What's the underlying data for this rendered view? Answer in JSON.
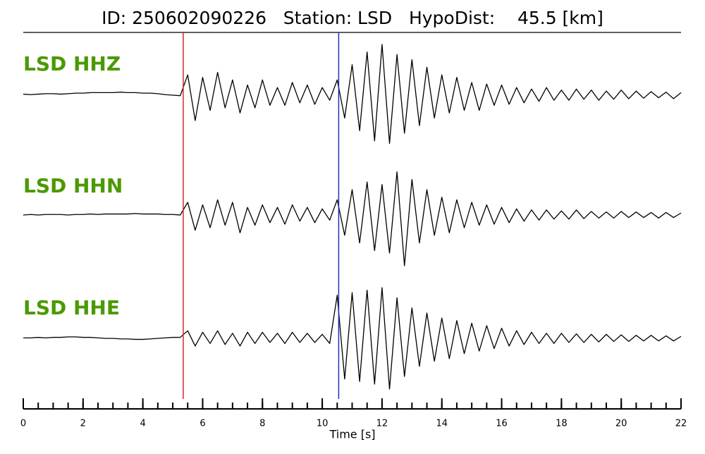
{
  "chart_data": {
    "type": "line",
    "title": "ID: 250602090226   Station: LSD   HypoDist:    45.5 [km]",
    "x_label": "Time [s]",
    "xlim": [
      0,
      22
    ],
    "xticks": [
      0,
      2,
      4,
      6,
      8,
      10,
      12,
      14,
      16,
      18,
      20,
      22
    ],
    "xminorticks": [
      0,
      0.5,
      1,
      1.5,
      2,
      2.5,
      3,
      3.5,
      4,
      4.5,
      5,
      5.5,
      6,
      6.5,
      7,
      7.5,
      8,
      8.5,
      9,
      9.5,
      10,
      10.5,
      11,
      11.5,
      12,
      12.5,
      13,
      13.5,
      14,
      14.5,
      15,
      15.5,
      16,
      16.5,
      17,
      17.5,
      18,
      18.5,
      19,
      19.5,
      20,
      20.5,
      21,
      21.5,
      22
    ],
    "label_color": "#4a9a00",
    "markers": [
      {
        "x": 5.35,
        "color": "#d62728"
      },
      {
        "x": 10.55,
        "color": "#2a2ab8"
      }
    ],
    "x": [
      0,
      0.25,
      0.5,
      0.75,
      1,
      1.25,
      1.5,
      1.75,
      2,
      2.25,
      2.5,
      2.75,
      3,
      3.25,
      3.5,
      3.75,
      4,
      4.25,
      4.5,
      4.75,
      5,
      5.25,
      5.5,
      5.75,
      6,
      6.25,
      6.5,
      6.75,
      7,
      7.25,
      7.5,
      7.75,
      8,
      8.25,
      8.5,
      8.75,
      9,
      9.25,
      9.5,
      9.75,
      10,
      10.25,
      10.5,
      10.75,
      11,
      11.25,
      11.5,
      11.75,
      12,
      12.25,
      12.5,
      12.75,
      13,
      13.25,
      13.5,
      13.75,
      14,
      14.25,
      14.5,
      14.75,
      15,
      15.25,
      15.5,
      15.75,
      16,
      16.25,
      16.5,
      16.75,
      17,
      17.25,
      17.5,
      17.75,
      18,
      18.25,
      18.5,
      18.75,
      19,
      19.25,
      19.5,
      19.75,
      20,
      20.25,
      20.5,
      20.75,
      21,
      21.25,
      21.5,
      21.75,
      22
    ],
    "series": [
      {
        "name": "LSD HHZ",
        "color": "#000000",
        "values": [
          0.02,
          0.01,
          0.02,
          0.03,
          0.03,
          0.02,
          0.03,
          0.04,
          0.04,
          0.05,
          0.05,
          0.05,
          0.05,
          0.06,
          0.05,
          0.05,
          0.04,
          0.04,
          0.03,
          0.01,
          0,
          -0.01,
          0.4,
          -0.5,
          0.35,
          -0.3,
          0.45,
          -0.25,
          0.3,
          -0.35,
          0.2,
          -0.25,
          0.3,
          -0.2,
          0.15,
          -0.2,
          0.25,
          -0.15,
          0.2,
          -0.18,
          0.15,
          -0.1,
          0.3,
          -0.45,
          0.6,
          -0.7,
          0.85,
          -0.9,
          1.0,
          -0.95,
          0.8,
          -0.75,
          0.7,
          -0.6,
          0.55,
          -0.45,
          0.4,
          -0.35,
          0.35,
          -0.3,
          0.25,
          -0.3,
          0.22,
          -0.2,
          0.2,
          -0.18,
          0.15,
          -0.15,
          0.12,
          -0.12,
          0.15,
          -0.1,
          0.1,
          -0.1,
          0.12,
          -0.08,
          0.1,
          -0.1,
          0.08,
          -0.08,
          0.1,
          -0.07,
          0.08,
          -0.06,
          0.07,
          -0.05,
          0.06,
          -0.07,
          0.05
        ]
      },
      {
        "name": "LSD HHN",
        "color": "#000000",
        "values": [
          0,
          0.01,
          0,
          0.01,
          0.01,
          0.01,
          0,
          0.01,
          0.01,
          0.02,
          0.01,
          0.02,
          0.02,
          0.02,
          0.02,
          0.03,
          0.02,
          0.02,
          0.02,
          0.01,
          0.01,
          0,
          0.25,
          -0.3,
          0.2,
          -0.25,
          0.3,
          -0.2,
          0.25,
          -0.35,
          0.15,
          -0.2,
          0.2,
          -0.15,
          0.15,
          -0.18,
          0.2,
          -0.12,
          0.15,
          -0.15,
          0.12,
          -0.1,
          0.3,
          -0.4,
          0.5,
          -0.55,
          0.65,
          -0.7,
          0.6,
          -0.75,
          0.85,
          -1.0,
          0.7,
          -0.55,
          0.5,
          -0.4,
          0.35,
          -0.35,
          0.3,
          -0.25,
          0.25,
          -0.2,
          0.2,
          -0.18,
          0.15,
          -0.15,
          0.12,
          -0.12,
          0.1,
          -0.1,
          0.1,
          -0.08,
          0.08,
          -0.08,
          0.1,
          -0.07,
          0.07,
          -0.06,
          0.06,
          -0.06,
          0.07,
          -0.05,
          0.06,
          -0.05,
          0.05,
          -0.06,
          0.05,
          -0.05,
          0.04
        ]
      },
      {
        "name": "LSD HHE",
        "color": "#000000",
        "values": [
          0.01,
          0.01,
          0.02,
          0.01,
          0.02,
          0.02,
          0.03,
          0.03,
          0.02,
          0.02,
          0.01,
          0,
          0,
          -0.01,
          -0.01,
          -0.02,
          -0.02,
          -0.01,
          0,
          0.01,
          0.02,
          0.02,
          0.15,
          -0.15,
          0.12,
          -0.1,
          0.15,
          -0.12,
          0.1,
          -0.15,
          0.12,
          -0.1,
          0.12,
          -0.08,
          0.1,
          -0.1,
          0.12,
          -0.08,
          0.1,
          -0.08,
          0.08,
          -0.1,
          0.85,
          -0.8,
          0.9,
          -0.85,
          0.95,
          -0.9,
          1.0,
          -1.0,
          0.8,
          -0.75,
          0.6,
          -0.55,
          0.5,
          -0.45,
          0.4,
          -0.4,
          0.35,
          -0.3,
          0.3,
          -0.25,
          0.25,
          -0.2,
          0.2,
          -0.15,
          0.15,
          -0.12,
          0.12,
          -0.1,
          0.1,
          -0.1,
          0.1,
          -0.08,
          0.09,
          -0.08,
          0.08,
          -0.07,
          0.08,
          -0.06,
          0.07,
          -0.06,
          0.06,
          -0.05,
          0.06,
          -0.05,
          0.05,
          -0.05,
          0.04
        ]
      }
    ]
  }
}
